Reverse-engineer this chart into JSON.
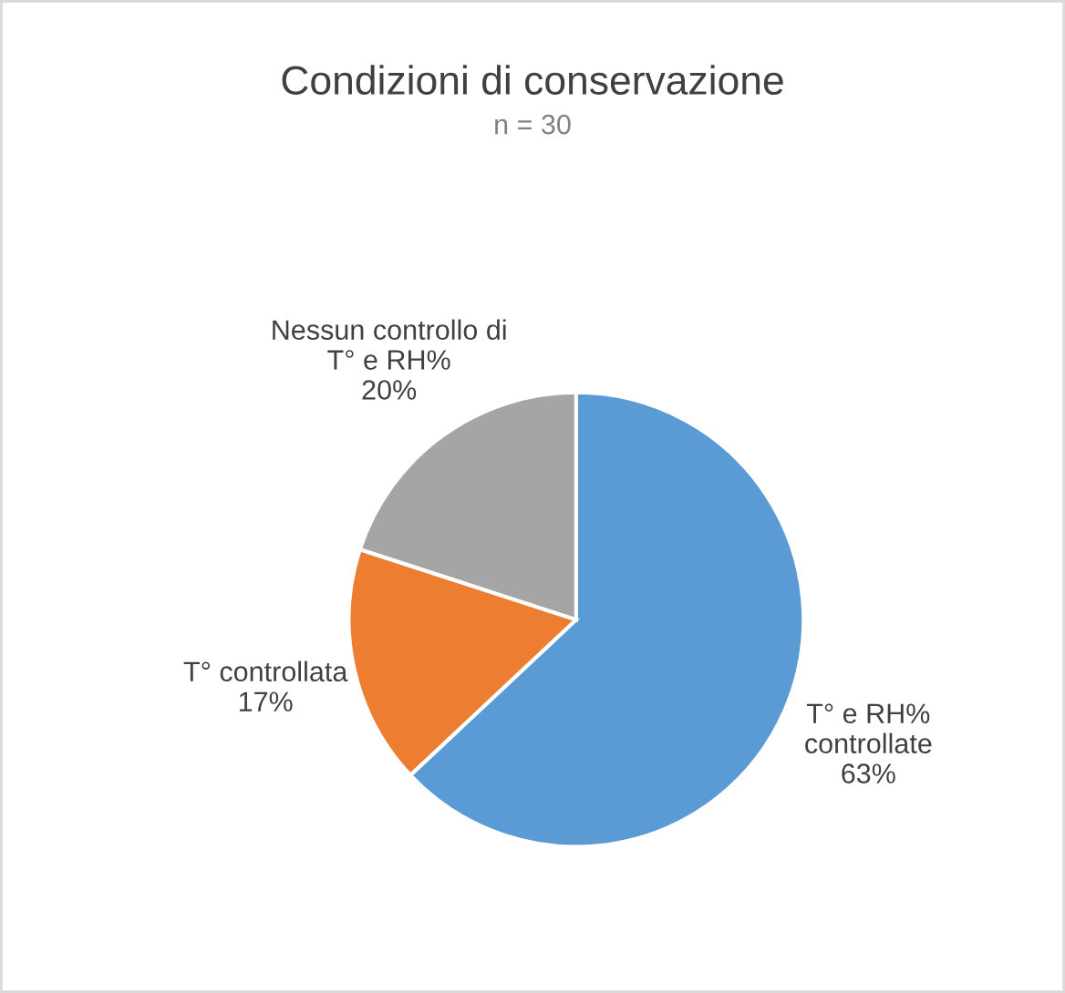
{
  "chart_data": {
    "type": "pie",
    "title": "Condizioni di conservazione",
    "subtitle": "n = 30",
    "categories": [
      "T° e RH%\ncontrollate",
      "T° controllata",
      "Nessun controllo di\nT° e RH%"
    ],
    "values": [
      63,
      17,
      20
    ],
    "colors": [
      "#5b9bd5",
      "#ed7d31",
      "#a5a5a5"
    ],
    "value_labels": [
      "63%",
      "17%",
      "20%"
    ],
    "legend": false
  }
}
